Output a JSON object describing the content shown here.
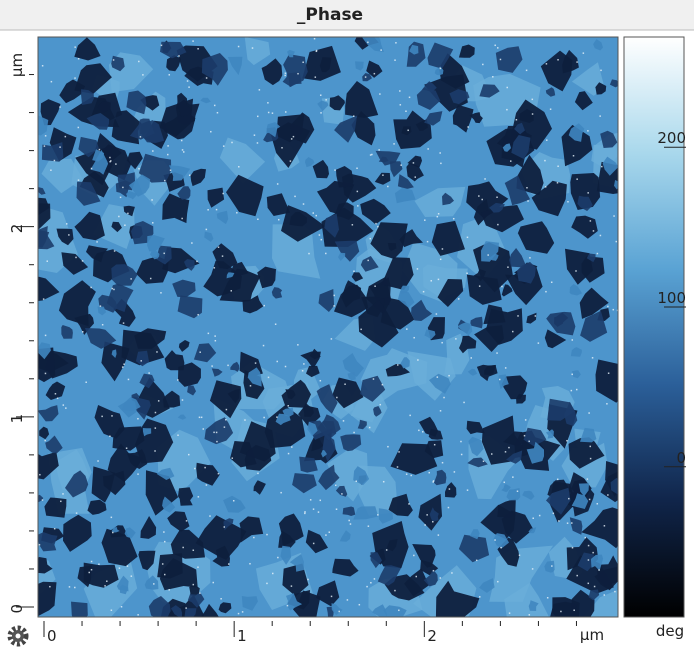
{
  "chart_data": {
    "type": "heatmap",
    "title": "_Phase",
    "xlim": [
      0,
      3.05
    ],
    "xticks": [
      0,
      1,
      2
    ],
    "x_unit": "µm",
    "ylim": [
      0,
      3.05
    ],
    "yticks": [
      0,
      1,
      2
    ],
    "y_unit": "µm",
    "colorbar": {
      "clim": [
        -94,
        269
      ],
      "ticks": [
        0,
        100,
        200
      ],
      "unit": "deg",
      "colormap": [
        "#000000",
        "#10254a",
        "#2b5f99",
        "#5aa3d4",
        "#a9d8ec",
        "#ffffff"
      ]
    }
  }
}
